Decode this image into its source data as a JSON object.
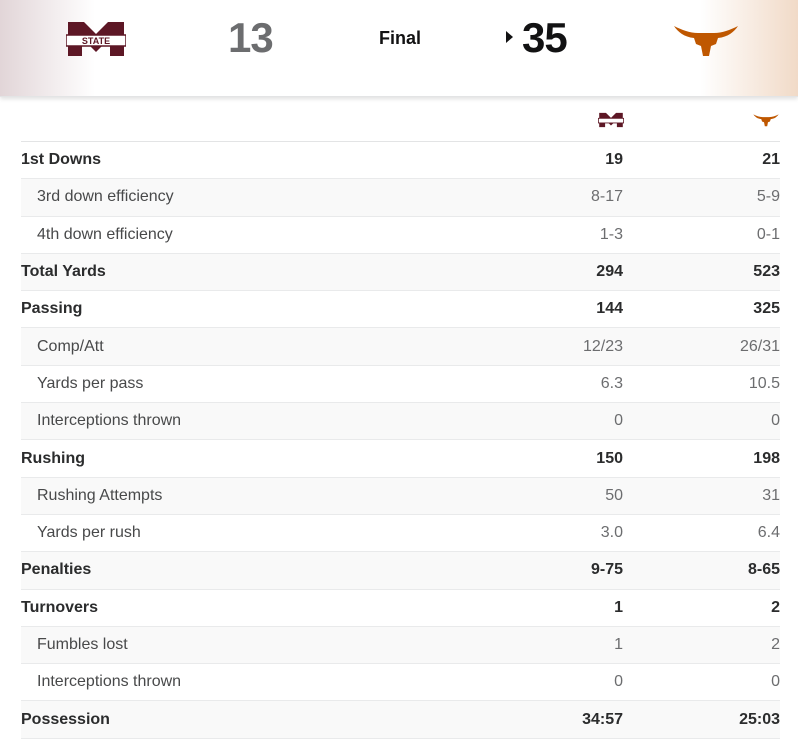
{
  "scoreboard": {
    "away_team": {
      "logo": "mississippi-state-logo",
      "logo_text": "STATE",
      "score": "13",
      "color": "#5d1725"
    },
    "status": "Final",
    "home_team": {
      "logo": "texas-longhorn-logo",
      "score": "35",
      "color": "#bf5700",
      "winner": true
    }
  },
  "stats": {
    "header": {
      "away_logo": "mississippi-state-logo",
      "home_logo": "texas-longhorn-logo"
    },
    "rows": [
      {
        "label": "1st Downs",
        "away": "19",
        "home": "21",
        "type": "main"
      },
      {
        "label": "3rd down efficiency",
        "away": "8-17",
        "home": "5-9",
        "type": "sub"
      },
      {
        "label": "4th down efficiency",
        "away": "1-3",
        "home": "0-1",
        "type": "sub"
      },
      {
        "label": "Total Yards",
        "away": "294",
        "home": "523",
        "type": "main"
      },
      {
        "label": "Passing",
        "away": "144",
        "home": "325",
        "type": "main"
      },
      {
        "label": "Comp/Att",
        "away": "12/23",
        "home": "26/31",
        "type": "sub"
      },
      {
        "label": "Yards per pass",
        "away": "6.3",
        "home": "10.5",
        "type": "sub"
      },
      {
        "label": "Interceptions thrown",
        "away": "0",
        "home": "0",
        "type": "sub"
      },
      {
        "label": "Rushing",
        "away": "150",
        "home": "198",
        "type": "main"
      },
      {
        "label": "Rushing Attempts",
        "away": "50",
        "home": "31",
        "type": "sub"
      },
      {
        "label": "Yards per rush",
        "away": "3.0",
        "home": "6.4",
        "type": "sub"
      },
      {
        "label": "Penalties",
        "away": "9-75",
        "home": "8-65",
        "type": "main"
      },
      {
        "label": "Turnovers",
        "away": "1",
        "home": "2",
        "type": "main"
      },
      {
        "label": "Fumbles lost",
        "away": "1",
        "home": "2",
        "type": "sub"
      },
      {
        "label": "Interceptions thrown",
        "away": "0",
        "home": "0",
        "type": "sub"
      },
      {
        "label": "Possession",
        "away": "34:57",
        "home": "25:03",
        "type": "main"
      }
    ]
  }
}
